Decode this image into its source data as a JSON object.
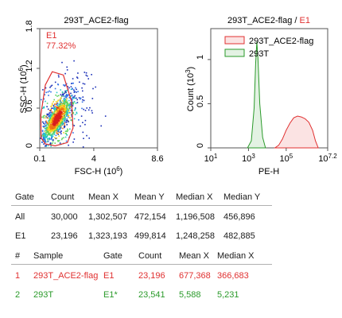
{
  "chart_data": [
    {
      "type": "scatter",
      "title": "293T_ACE2-flag",
      "xlabel": "FSC-H",
      "xunit_exp": "6",
      "ylabel": "SSC-H",
      "yunit_exp": "6",
      "xticks": [
        "0.1",
        "4",
        "8.6"
      ],
      "yticks": [
        "0",
        "0.6",
        "1.2",
        "1.8"
      ],
      "xlim": [
        0.1,
        8.6
      ],
      "ylim": [
        0,
        1.8
      ],
      "gate": {
        "name": "E1",
        "percent": "77.32%",
        "color": "#e03030"
      },
      "density_peak": {
        "x": 1.3,
        "y": 0.45
      }
    },
    {
      "type": "area",
      "title_prefix": "293T_ACE2-flag / ",
      "title_gate": "E1",
      "xlabel": "PE-H",
      "ylabel": "Count",
      "yunit_exp": "3",
      "xscale": "log",
      "xlim": [
        1,
        7.2
      ],
      "xticks": [
        {
          "base": "10",
          "exp": "1"
        },
        {
          "base": "10",
          "exp": "3"
        },
        {
          "base": "10",
          "exp": "5"
        },
        {
          "base": "10",
          "exp": "7.2"
        }
      ],
      "yticks": [
        "0",
        "0.5",
        "1"
      ],
      "ylim": [
        0,
        1.35
      ],
      "legend_position": "top-left",
      "series": [
        {
          "name": "293T_ACE2-flag",
          "color": "#e03030",
          "fill": "#fbe3e3",
          "points": [
            [
              4.4,
              0
            ],
            [
              4.6,
              0.03
            ],
            [
              4.8,
              0.1
            ],
            [
              5.0,
              0.2
            ],
            [
              5.2,
              0.28
            ],
            [
              5.4,
              0.34
            ],
            [
              5.6,
              0.36
            ],
            [
              5.8,
              0.35
            ],
            [
              6.0,
              0.33
            ],
            [
              6.2,
              0.29
            ],
            [
              6.4,
              0.2
            ],
            [
              6.55,
              0.08
            ],
            [
              6.7,
              0
            ]
          ]
        },
        {
          "name": "293T",
          "color": "#2a9a2a",
          "fill": "#e3f2e3",
          "points": [
            [
              2.95,
              0
            ],
            [
              3.15,
              0.08
            ],
            [
              3.3,
              0.45
            ],
            [
              3.38,
              0.95
            ],
            [
              3.44,
              1.2
            ],
            [
              3.5,
              1.02
            ],
            [
              3.6,
              0.5
            ],
            [
              3.75,
              0.12
            ],
            [
              3.9,
              0
            ]
          ]
        }
      ]
    }
  ],
  "table1": {
    "headers": [
      "Gate",
      "Count",
      "Mean X",
      "Mean Y",
      "Median X",
      "Median Y"
    ],
    "rows": [
      [
        "All",
        "30,000",
        "1,302,507",
        "472,154",
        "1,196,508",
        "456,896"
      ],
      [
        "E1",
        "23,196",
        "1,323,193",
        "499,814",
        "1,248,258",
        "482,885"
      ]
    ]
  },
  "table2": {
    "headers": [
      "#",
      "Sample",
      "Gate",
      "Count",
      "Mean X",
      "Median X"
    ],
    "rows": [
      {
        "color": "#e03030",
        "cells": [
          "1",
          "293T_ACE2-flag",
          "E1",
          "23,196",
          "677,368",
          "366,683"
        ]
      },
      {
        "color": "#2a9a2a",
        "cells": [
          "2",
          "293T",
          "E1*",
          "23,541",
          "5,588",
          "5,231"
        ]
      }
    ]
  }
}
